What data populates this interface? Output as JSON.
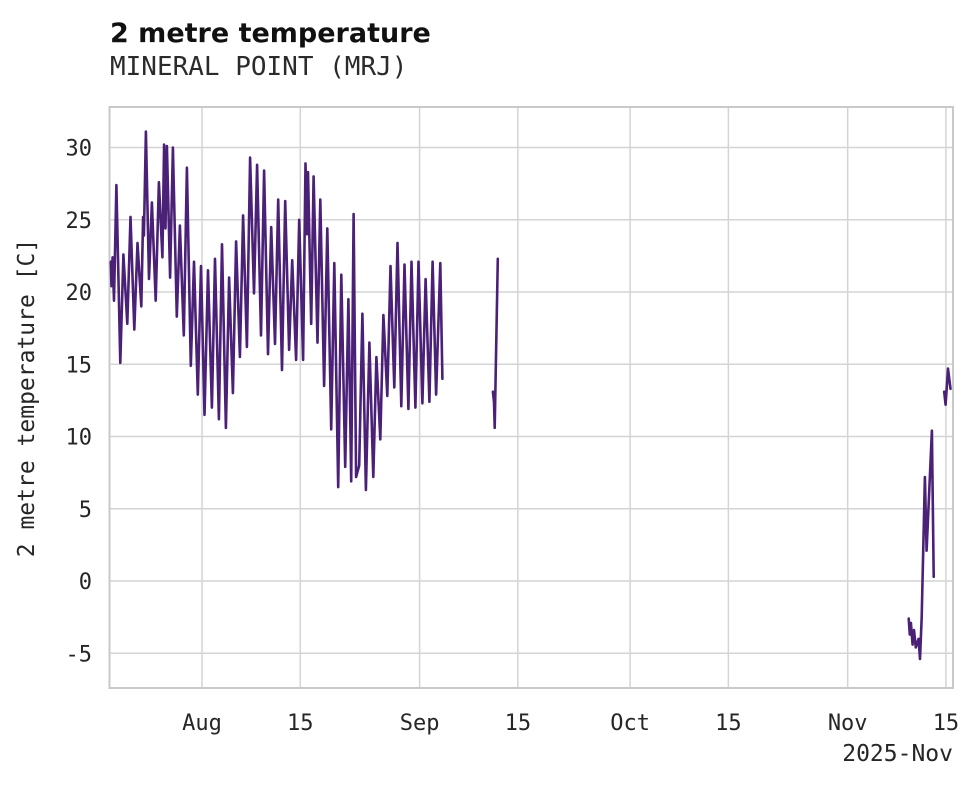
{
  "title": "2 metre temperature",
  "subtitle": "MINERAL POINT (MRJ)",
  "y_axis_label": "2 metre temperature [C]",
  "x_axis_year_label": "2025-Nov",
  "chart_data": {
    "type": "line",
    "title": "2 metre temperature",
    "subtitle": "MINERAL POINT (MRJ)",
    "xlabel": "",
    "ylabel": "2 metre temperature [C]",
    "x_unit": "days since 2025-07-19 (axis shows Aug - Nov 15, year 2025)",
    "y_unit": "degrees Celsius",
    "ylim": [
      -7.4,
      32.8
    ],
    "xlim_days": [
      -0.2,
      120.0
    ],
    "grid": true,
    "legend": "none",
    "line_color": "#4b2077",
    "grid_color": "#d4d4d4",
    "border_color": "#c9c9c9",
    "y_ticks": [
      {
        "label": "30",
        "value": 30
      },
      {
        "label": "25",
        "value": 25
      },
      {
        "label": "20",
        "value": 20
      },
      {
        "label": "15",
        "value": 15
      },
      {
        "label": "10",
        "value": 10
      },
      {
        "label": "5",
        "value": 5
      },
      {
        "label": "0",
        "value": 0
      },
      {
        "label": "-5",
        "value": -5
      }
    ],
    "x_ticks": [
      {
        "label": "Aug",
        "day": 13
      },
      {
        "label": "15",
        "day": 27
      },
      {
        "label": "Sep",
        "day": 44
      },
      {
        "label": "15",
        "day": 58
      },
      {
        "label": "Oct",
        "day": 74
      },
      {
        "label": "15",
        "day": 88
      },
      {
        "label": "Nov",
        "day": 105
      },
      {
        "label": "15",
        "day": 119
      }
    ],
    "segments": [
      [
        [
          0.0,
          22.1
        ],
        [
          0.1,
          20.4
        ],
        [
          0.25,
          22.4
        ],
        [
          0.45,
          19.4
        ],
        [
          0.8,
          27.4
        ],
        [
          1.35,
          15.1
        ],
        [
          1.8,
          22.6
        ],
        [
          2.35,
          17.8
        ],
        [
          2.8,
          25.2
        ],
        [
          3.35,
          17.4
        ],
        [
          3.8,
          23.4
        ],
        [
          4.35,
          19.0
        ],
        [
          4.6,
          25.2
        ],
        [
          4.72,
          23.9
        ],
        [
          5.0,
          31.1
        ],
        [
          5.45,
          20.9
        ],
        [
          5.85,
          26.2
        ],
        [
          6.4,
          19.4
        ],
        [
          6.85,
          27.6
        ],
        [
          7.35,
          22.4
        ],
        [
          7.6,
          30.2
        ],
        [
          7.8,
          24.4
        ],
        [
          8.0,
          30.1
        ],
        [
          8.45,
          21.0
        ],
        [
          8.85,
          30.0
        ],
        [
          9.4,
          18.3
        ],
        [
          9.85,
          24.6
        ],
        [
          10.4,
          17.0
        ],
        [
          10.85,
          28.6
        ],
        [
          11.4,
          14.9
        ],
        [
          11.85,
          22.1
        ],
        [
          12.4,
          12.9
        ],
        [
          12.85,
          21.8
        ],
        [
          13.35,
          11.5
        ],
        [
          13.85,
          21.5
        ],
        [
          14.4,
          12.0
        ],
        [
          14.85,
          22.3
        ],
        [
          15.4,
          11.2
        ],
        [
          15.85,
          23.3
        ],
        [
          16.4,
          10.6
        ],
        [
          16.85,
          21.0
        ],
        [
          17.4,
          13.0
        ],
        [
          17.85,
          23.5
        ],
        [
          18.4,
          15.5
        ],
        [
          18.85,
          25.3
        ],
        [
          19.4,
          16.2
        ],
        [
          19.85,
          29.3
        ],
        [
          20.4,
          19.9
        ],
        [
          20.85,
          28.8
        ],
        [
          21.4,
          17.0
        ],
        [
          21.85,
          28.4
        ],
        [
          22.4,
          15.7
        ],
        [
          22.85,
          24.5
        ],
        [
          23.4,
          16.4
        ],
        [
          23.85,
          26.4
        ],
        [
          24.4,
          14.6
        ],
        [
          24.85,
          26.3
        ],
        [
          25.4,
          16.0
        ],
        [
          25.85,
          22.2
        ],
        [
          26.4,
          15.3
        ],
        [
          26.85,
          25.0
        ],
        [
          27.4,
          15.3
        ],
        [
          27.75,
          28.9
        ],
        [
          27.95,
          24.0
        ],
        [
          28.1,
          28.3
        ],
        [
          28.55,
          17.8
        ],
        [
          28.9,
          28.0
        ],
        [
          29.45,
          16.5
        ],
        [
          29.85,
          26.4
        ],
        [
          30.4,
          13.5
        ],
        [
          30.85,
          24.4
        ],
        [
          31.4,
          10.5
        ],
        [
          31.85,
          22.0
        ],
        [
          32.4,
          6.5
        ],
        [
          32.85,
          21.2
        ],
        [
          33.4,
          7.9
        ],
        [
          33.85,
          19.5
        ],
        [
          34.25,
          6.9
        ],
        [
          34.6,
          25.4
        ],
        [
          34.95,
          7.2
        ],
        [
          35.4,
          8.0
        ],
        [
          35.85,
          18.5
        ],
        [
          36.35,
          6.3
        ],
        [
          36.85,
          16.5
        ],
        [
          37.4,
          7.2
        ],
        [
          37.85,
          15.5
        ],
        [
          38.4,
          9.8
        ],
        [
          38.85,
          18.4
        ],
        [
          39.4,
          12.8
        ],
        [
          39.85,
          21.8
        ],
        [
          40.4,
          13.4
        ],
        [
          40.85,
          23.4
        ],
        [
          41.4,
          12.1
        ],
        [
          41.85,
          21.9
        ],
        [
          42.4,
          11.9
        ],
        [
          42.85,
          22.1
        ],
        [
          43.4,
          12.0
        ],
        [
          43.85,
          22.1
        ],
        [
          44.4,
          12.3
        ],
        [
          44.85,
          20.9
        ],
        [
          45.4,
          12.4
        ],
        [
          45.85,
          22.1
        ],
        [
          46.35,
          12.9
        ],
        [
          46.95,
          22.0
        ],
        [
          47.25,
          14.0
        ]
      ],
      [
        [
          54.45,
          13.1
        ],
        [
          54.6,
          12.4
        ],
        [
          54.7,
          10.6
        ],
        [
          55.15,
          22.3
        ]
      ],
      [
        [
          113.7,
          -2.6
        ],
        [
          113.85,
          -3.7
        ],
        [
          114.0,
          -2.9
        ],
        [
          114.25,
          -4.4
        ],
        [
          114.45,
          -3.4
        ],
        [
          114.7,
          -4.6
        ],
        [
          115.1,
          -4.0
        ],
        [
          115.3,
          -5.4
        ],
        [
          115.55,
          -2.5
        ],
        [
          116.0,
          7.2
        ],
        [
          116.25,
          2.1
        ],
        [
          117.0,
          10.4
        ],
        [
          117.25,
          0.3
        ]
      ],
      [
        [
          118.75,
          13.1
        ],
        [
          118.95,
          12.2
        ],
        [
          119.3,
          14.7
        ],
        [
          119.65,
          13.3
        ]
      ]
    ]
  }
}
